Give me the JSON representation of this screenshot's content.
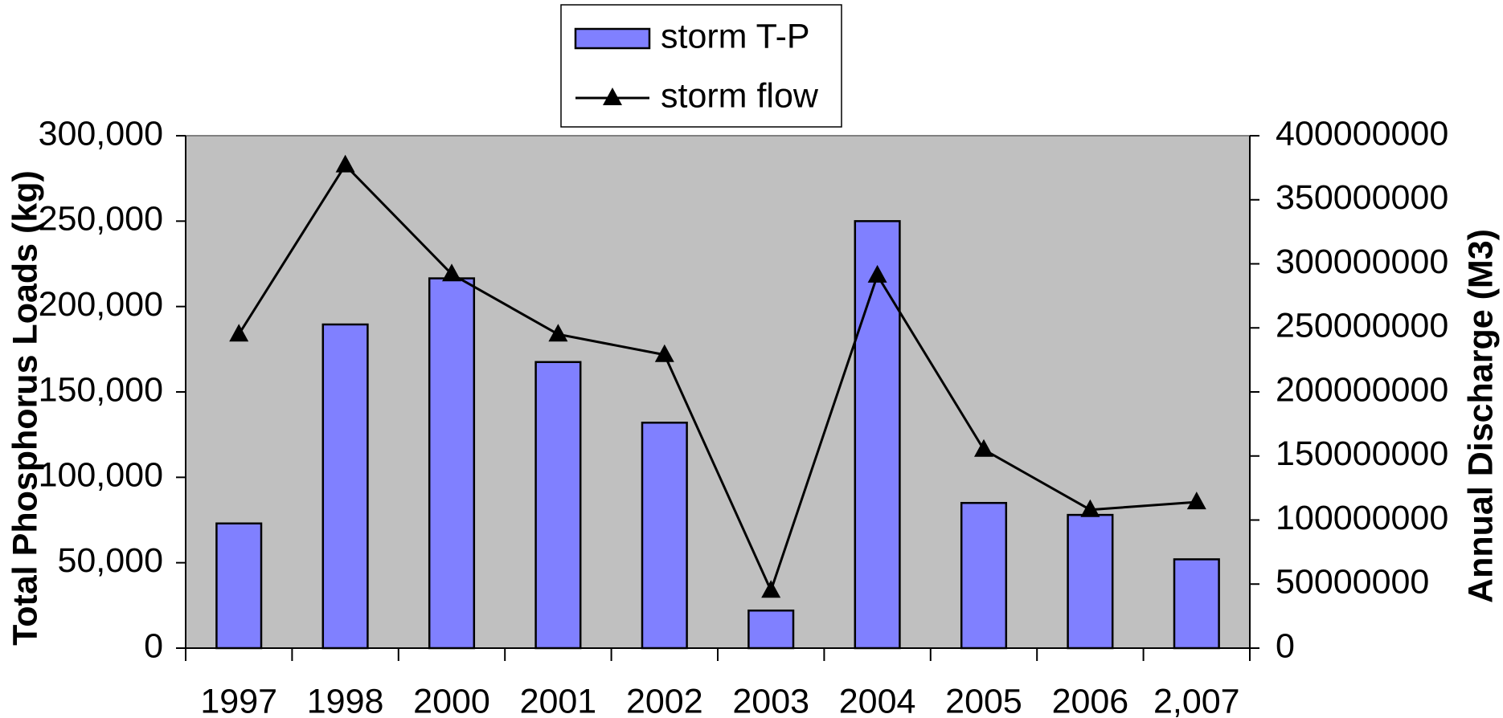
{
  "chart_data": {
    "type": "bar_line",
    "categories": [
      "1997",
      "1998",
      "2000",
      "2001",
      "2002",
      "2003",
      "2004",
      "2005",
      "2006",
      "2,007"
    ],
    "series": [
      {
        "name": "storm T-P",
        "type": "bar",
        "color": "#8080ff",
        "values": [
          73000,
          189500,
          216500,
          167500,
          132000,
          22000,
          250000,
          85000,
          78000,
          52000
        ]
      },
      {
        "name": "storm flow",
        "type": "line",
        "axis": "y2",
        "color": "#000000",
        "values": [
          245000000,
          377000000,
          292000000,
          245000000,
          229000000,
          45000000,
          291000000,
          155000000,
          108000000,
          114000000
        ]
      }
    ],
    "ylabel": "Total Phosphorus Loads (kg)",
    "y2label": "Annual Discharge (M3)",
    "ylim": [
      0,
      300000
    ],
    "yticks": [
      0,
      {
        "value": 50000,
        "label": "50,000"
      },
      {
        "value": 100000,
        "label": "100,000"
      },
      {
        "value": 150000,
        "label": "150,000"
      },
      {
        "value": 200000,
        "label": "200,000"
      },
      {
        "value": 250000,
        "label": "250,000"
      },
      {
        "value": 300000,
        "label": "300,000"
      }
    ],
    "y2lim": [
      0,
      400000000
    ],
    "y2ticks": [
      0,
      50000000,
      100000000,
      150000000,
      200000000,
      250000000,
      300000000,
      350000000,
      400000000
    ],
    "plot_background": "#c0c0c0",
    "legend": "top"
  }
}
